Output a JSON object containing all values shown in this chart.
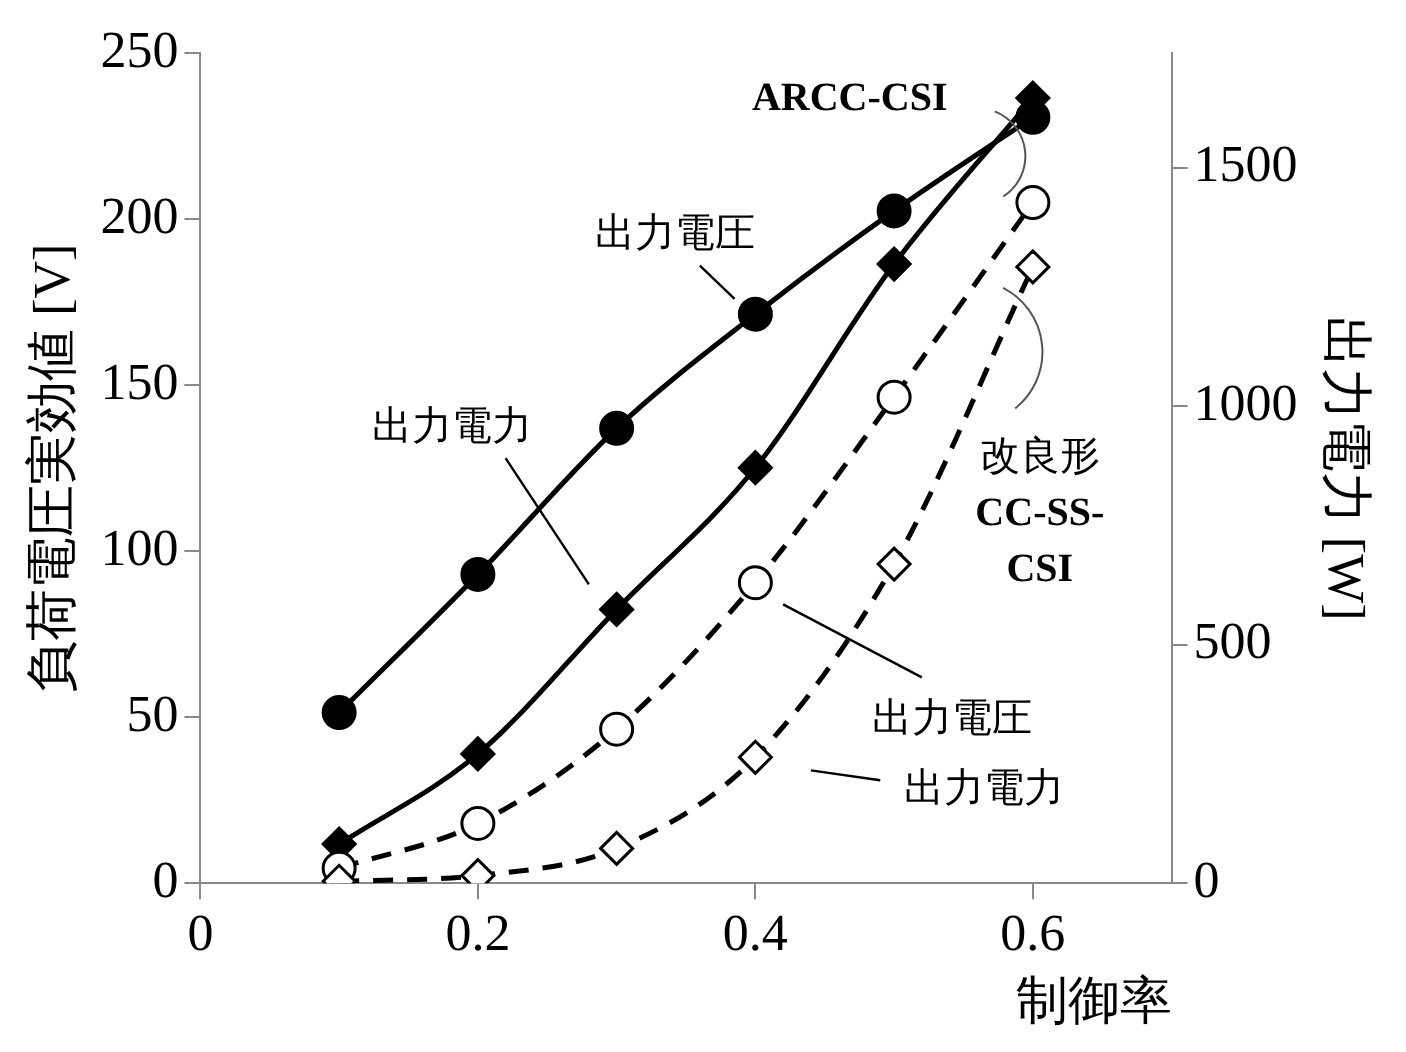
{
  "chart_data": {
    "type": "line",
    "xlabel": "制御率",
    "ylabel": "負荷電圧実効値 [V]",
    "y2label": "出力電力 [W]",
    "x": [
      0.1,
      0.2,
      0.3,
      0.4,
      0.5,
      0.6
    ],
    "xlim": [
      0,
      0.7
    ],
    "xticks": [
      0,
      0.2,
      0.4,
      0.6
    ],
    "ylim": [
      0,
      250
    ],
    "yticks": [
      0,
      50,
      100,
      150,
      200,
      250
    ],
    "y2lim": [
      0,
      1740
    ],
    "y2ticks": [
      0,
      500,
      1000,
      1500
    ],
    "grid": false,
    "legend": false,
    "series": [
      {
        "color": "#000000",
        "marker": "circle",
        "line_style": "solid",
        "values": [
          51.4,
          93,
          137,
          171.4,
          202.5,
          230.7
        ]
      },
      {
        "color": "#000000",
        "marker": "diamond",
        "line_style": "solid",
        "axis": "y2",
        "values": [
          82,
          271,
          574,
          871,
          1298,
          1646
        ]
      },
      {
        "color": "#000000",
        "marker": "circle",
        "line_style": "dashed",
        "values": [
          4.5,
          18,
          46.4,
          90.5,
          146.4,
          205
        ]
      },
      {
        "color": "#000000",
        "marker": "diamond",
        "line_style": "dashed",
        "axis": "y2",
        "values": [
          4,
          16,
          73,
          264,
          669,
          1292
        ]
      }
    ],
    "annotations": [
      "ARCC-CSI",
      "出力電圧",
      "出力電力",
      "改良形\nCC-SS-\nCSI",
      "出力電圧",
      "出力電力"
    ]
  }
}
